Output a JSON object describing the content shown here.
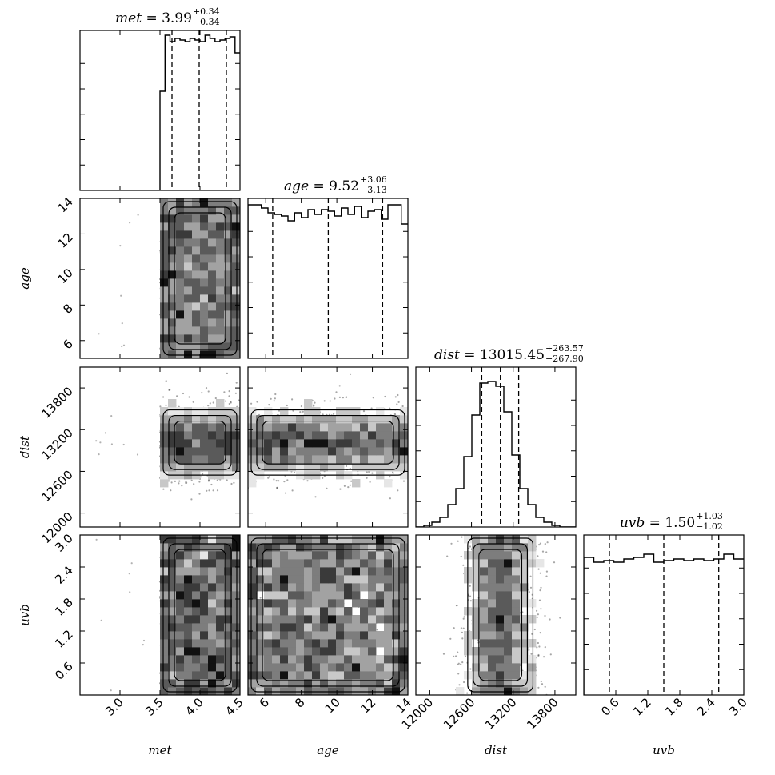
{
  "chart_data": {
    "type": "corner",
    "parameters": [
      {
        "name": "met",
        "median": "3.99",
        "err_plus": "+0.34",
        "err_minus": "−0.34",
        "range": [
          2.5,
          4.5
        ],
        "ticks": [
          3.0,
          3.5,
          4.0,
          4.5
        ],
        "tick_labels": [
          "3.0",
          "3.5",
          "4.0",
          "4.5"
        ],
        "quantiles": [
          3.65,
          3.99,
          4.33
        ]
      },
      {
        "name": "age",
        "median": "9.52",
        "err_plus": "+3.06",
        "err_minus": "−3.13",
        "range": [
          5,
          14
        ],
        "ticks": [
          6,
          8,
          10,
          12,
          14
        ],
        "tick_labels": [
          "6",
          "8",
          "10",
          "12",
          "14"
        ],
        "quantiles": [
          6.39,
          9.52,
          12.58
        ]
      },
      {
        "name": "dist",
        "median": "13015.45",
        "err_plus": "+263.57",
        "err_minus": "−267.90",
        "range": [
          11800,
          14100
        ],
        "ticks": [
          12000,
          12600,
          13200,
          13800
        ],
        "tick_labels": [
          "12000",
          "12600",
          "13200",
          "13800"
        ],
        "quantiles": [
          12747.55,
          13015.45,
          13279.02
        ]
      },
      {
        "name": "uvb",
        "median": "1.50",
        "err_plus": "+1.03",
        "err_minus": "−1.02",
        "range": [
          0,
          3.0
        ],
        "ticks": [
          0.6,
          1.2,
          1.8,
          2.4,
          3.0
        ],
        "tick_labels": [
          "0.6",
          "1.2",
          "1.8",
          "2.4",
          "3.0"
        ],
        "quantiles": [
          0.48,
          1.5,
          2.53
        ]
      }
    ],
    "diagonal_label": {
      "met": "met",
      "age": "age",
      "dist": "dist",
      "uvb": "uvb"
    },
    "marginals": {
      "met": [
        0,
        0,
        0,
        0,
        0,
        0,
        0,
        0,
        0,
        0,
        0,
        0,
        0,
        0,
        0,
        0,
        0.62,
        0.97,
        0.93,
        0.95,
        0.94,
        0.93,
        0.95,
        0.94,
        0.93,
        0.97,
        0.95,
        0.93,
        0.94,
        0.95,
        0.96,
        0.86
      ],
      "age": [
        0.96,
        0.96,
        0.94,
        0.91,
        0.9,
        0.89,
        0.86,
        0.91,
        0.88,
        0.93,
        0.9,
        0.93,
        0.92,
        0.89,
        0.94,
        0.9,
        0.95,
        0.88,
        0.92,
        0.93,
        0.87,
        0.96,
        0.96,
        0.84
      ],
      "dist": [
        0,
        0.01,
        0.03,
        0.06,
        0.14,
        0.24,
        0.44,
        0.7,
        0.9,
        0.91,
        0.88,
        0.72,
        0.45,
        0.24,
        0.14,
        0.06,
        0.03,
        0.01,
        0,
        0
      ],
      "uvb": [
        0.86,
        0.83,
        0.84,
        0.83,
        0.85,
        0.86,
        0.88,
        0.83,
        0.84,
        0.85,
        0.84,
        0.85,
        0.84,
        0.85,
        0.88,
        0.85
      ]
    },
    "grid": false
  }
}
